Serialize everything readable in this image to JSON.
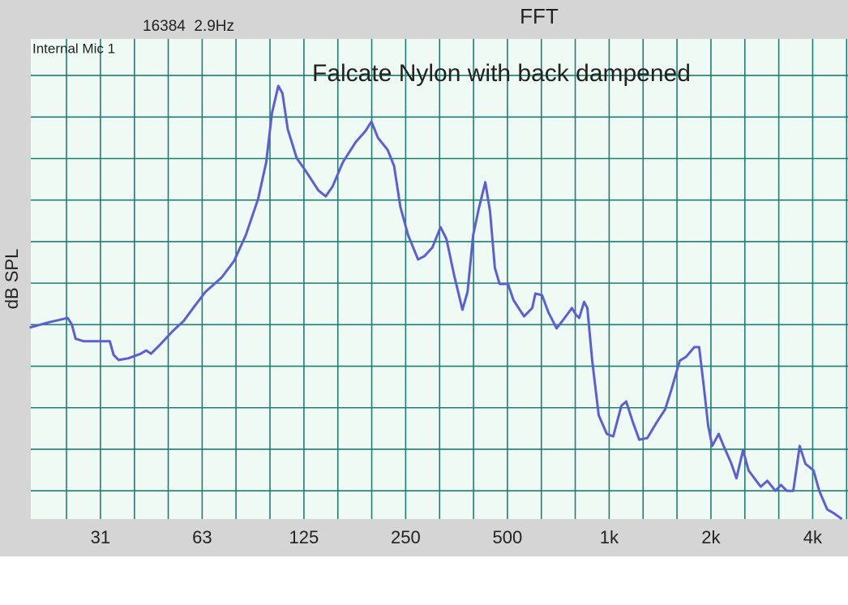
{
  "chart_data": {
    "type": "line",
    "title": "FFT",
    "fft_info": "16384  2.9Hz",
    "input_label": "Internal Mic 1",
    "subtitle": "Falcate Nylon with back dampened",
    "y_label": "dB SPL",
    "x_scale": "log",
    "grid": true,
    "xlim": [
      19.45,
      5088
    ],
    "xticks": [
      {
        "value": 31.25,
        "label": "31"
      },
      {
        "value": 62.5,
        "label": "63"
      },
      125,
      250,
      500,
      {
        "value": 1000,
        "label": "1k"
      },
      {
        "value": 2000,
        "label": "2k"
      },
      {
        "value": 4000,
        "label": "4k"
      }
    ],
    "xgrid": [
      24.8,
      31.25,
      39.4,
      49.6,
      62.5,
      78.7,
      99.2,
      125,
      157.5,
      198.4,
      250,
      315,
      396.9,
      500,
      630,
      793.7,
      1000,
      1260,
      1587,
      2000,
      2520,
      3175,
      4000,
      5040
    ],
    "ylim": [
      -6.8,
      108.8
    ],
    "ygrid": [
      0,
      10,
      20,
      30,
      40,
      50,
      60,
      70,
      80,
      90,
      100
    ],
    "series": [
      {
        "name": "Internal Mic 1",
        "color": "#5b5fd1",
        "x": [
          19.3,
          21.8,
          25.0,
          25.7,
          26.4,
          27.9,
          33.3,
          34.2,
          35.4,
          37.8,
          41.1,
          42.7,
          44.1,
          47.2,
          51.2,
          55.1,
          58.8,
          63.9,
          71.4,
          77.6,
          84.2,
          91.5,
          96.7,
          100.5,
          105,
          108,
          112,
          119,
          127,
          138,
          145,
          152,
          163,
          178,
          190,
          198,
          207,
          221,
          231,
          241,
          254,
          272,
          284,
          300,
          317,
          330,
          348,
          368,
          381,
          396,
          411,
          430,
          444,
          459,
          474,
          502,
          521,
          560,
          592,
          605,
          633,
          661,
          699,
          738,
          776,
          797,
          815,
          843,
          862,
          891,
          931,
          984,
          1028,
          1087,
          1123,
          1174,
          1227,
          1296,
          1385,
          1464,
          1530,
          1617,
          1690,
          1787,
          1846,
          1909,
          1962,
          2017,
          2109,
          2191,
          2290,
          2380,
          2488,
          2585,
          2688,
          2809,
          2937,
          3103,
          3224,
          3351,
          3505,
          3661,
          3807,
          4024,
          4182,
          4418,
          4619,
          4882
        ],
        "values": [
          39.3,
          40.5,
          41.6,
          40.1,
          36.6,
          36.0,
          36.0,
          32.7,
          31.5,
          31.9,
          33.0,
          33.8,
          33.0,
          35.4,
          38.5,
          40.9,
          44.0,
          47.9,
          51.4,
          55.3,
          61.6,
          70.3,
          79.1,
          90.9,
          97.5,
          95.7,
          87.0,
          80.1,
          76.8,
          72.3,
          70.9,
          73.3,
          79.1,
          84.0,
          86.6,
          88.9,
          85.0,
          82.1,
          78.2,
          68.4,
          61.6,
          55.7,
          56.5,
          58.6,
          63.5,
          60.6,
          51.8,
          43.6,
          47.9,
          61.6,
          67.8,
          74.3,
          67.4,
          53.7,
          49.8,
          49.8,
          45.9,
          42.0,
          44.0,
          47.5,
          47.1,
          43.0,
          39.1,
          41.6,
          44.0,
          42.4,
          41.6,
          45.5,
          44.0,
          31.3,
          18.2,
          13.7,
          13.1,
          20.5,
          21.5,
          16.6,
          12.3,
          12.7,
          16.6,
          19.6,
          24.5,
          31.3,
          32.3,
          34.6,
          34.6,
          24.5,
          15.7,
          10.8,
          13.7,
          10.4,
          6.9,
          3.0,
          9.8,
          4.9,
          3.0,
          1.0,
          2.4,
          0.0,
          1.4,
          0.0,
          0.0,
          10.8,
          6.5,
          4.9,
          0.0,
          -4.5,
          -5.4,
          -6.8
        ]
      }
    ]
  }
}
